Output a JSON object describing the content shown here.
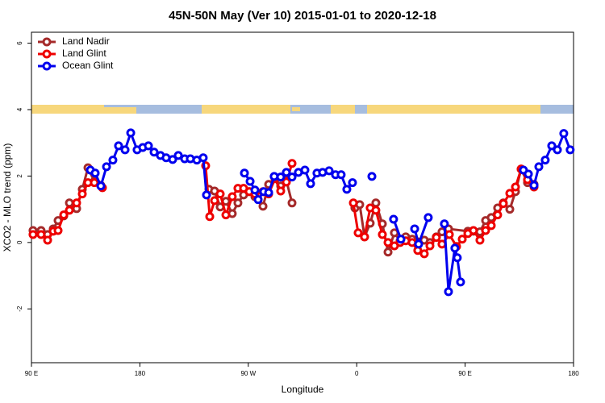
{
  "chart_data": {
    "type": "line",
    "title": "45N-50N May (Ver 10)   2015-01-01 to 2020-12-18",
    "x_label": "Longitude",
    "y_label": "XCO2 - MLO trend (ppm)",
    "xlim": [
      90,
      540
    ],
    "xticks": [
      {
        "value": 90,
        "label": "90 E"
      },
      180,
      {
        "value": 270,
        "label": "90 W"
      },
      {
        "value": 360,
        "label": "0"
      },
      {
        "value": 450,
        "label": "90 E"
      },
      {
        "value": 540,
        "label": "180"
      }
    ],
    "ylim": [
      -3.62,
      6.33
    ],
    "yticks": [
      -2,
      0,
      2,
      4,
      6
    ],
    "legend": "top-left",
    "series": [
      {
        "name": "Land Nadir",
        "color": "#a52a2a",
        "x": [
          91.3,
          98,
          103.4,
          108.1,
          112.1,
          116.8,
          121.5,
          127.5,
          132.2,
          136.9,
          142.2,
          147.6,
          null,
          237.3,
          242,
          246.7,
          251.4,
          256.7,
          261.4,
          266.1,
          270.8,
          275.5,
          282.2,
          286.9,
          292.2,
          296.9,
          301.6,
          306.3,
          null,
          358.5,
          362.5,
          366.5,
          371.2,
          375.9,
          381.3,
          386,
          391.3,
          396,
          400.7,
          406,
          410.7,
          416.1,
          420.8,
          426.1,
          430.8,
          436.2,
          452.3,
          456.9,
          462.3,
          467,
          471.7,
          477,
          481.7,
          487.1,
          491.8,
          496.5,
          501.8,
          507.2
        ],
        "values": [
          0.36,
          0.36,
          0.24,
          0.41,
          0.66,
          0.8,
          1.19,
          1.02,
          1.6,
          2.25,
          1.84,
          1.72,
          null,
          1.6,
          1.55,
          1.07,
          1.24,
          0.87,
          1.19,
          1.43,
          1.53,
          1.38,
          1.09,
          1.75,
          1.94,
          1.7,
          1.87,
          1.19,
          null,
          1.04,
          1.14,
          0.17,
          0.58,
          1.19,
          0.56,
          -0.29,
          0.29,
          0.05,
          0.17,
          0.1,
          0.02,
          0.07,
          0,
          0.17,
          0.32,
          0.41,
          0.34,
          0.34,
          0.32,
          0.66,
          0.75,
          1.04,
          1.19,
          1.0,
          1.53,
          2.21,
          1.8,
          1.75
        ]
      },
      {
        "name": "Land Glint",
        "color": "#ee0000",
        "x": [
          91.3,
          98,
          103.4,
          108.1,
          112.1,
          116.8,
          121.5,
          127.5,
          132.2,
          136.9,
          142.2,
          148.9,
          null,
          234.6,
          238,
          242,
          246.7,
          251.4,
          256.7,
          261.4,
          266.1,
          270.8,
          275.5,
          282.2,
          286.9,
          292.2,
          296.9,
          301.6,
          306.3,
          null,
          357.2,
          361.2,
          366.5,
          371.2,
          375.9,
          381.3,
          386,
          391.3,
          396,
          400.7,
          406,
          410.7,
          416.1,
          420.8,
          426.1,
          430.8,
          436.9,
          442.9,
          447.6,
          452.3,
          456.9,
          462.3,
          467,
          471.7,
          477,
          481.7,
          487.1,
          491.8,
          496.5,
          501.8,
          507.2
        ],
        "values": [
          0.24,
          0.24,
          0.07,
          0.34,
          0.36,
          0.83,
          0.97,
          1.19,
          1.46,
          1.8,
          1.8,
          1.65,
          null,
          2.31,
          0.78,
          1.26,
          1.46,
          0.83,
          1.38,
          1.63,
          1.63,
          1.53,
          1.46,
          1.53,
          1.46,
          1.92,
          1.55,
          1.82,
          2.38,
          null,
          1.19,
          0.29,
          0.17,
          1.04,
          0.97,
          0.24,
          0,
          -0.1,
          0,
          0.05,
          0,
          -0.24,
          -0.34,
          -0.1,
          0.15,
          -0.05,
          0.24,
          -0.12,
          0.1,
          0.27,
          0.36,
          0.07,
          0.36,
          0.51,
          0.83,
          1.17,
          1.48,
          1.67,
          2.21,
          1.89,
          1.67
        ]
      },
      {
        "name": "Ocean Glint",
        "color": "#0000ee",
        "x": [
          138.9,
          142.9,
          147.6,
          152.3,
          157.6,
          162.3,
          167.7,
          172.4,
          177.7,
          182.4,
          187.1,
          191.8,
          197.1,
          201.8,
          207.2,
          211.9,
          217.2,
          221.9,
          227.3,
          232.6,
          235.3,
          null,
          266.8,
          271.5,
          275.5,
          278.2,
          282.8,
          286.9,
          291.5,
          296.9,
          301.6,
          306.3,
          311.6,
          317,
          321.7,
          327,
          331.7,
          337.1,
          342.4,
          347.1,
          351.8,
          356.5,
          null,
          372.6,
          null,
          390.6,
          396.7,
          null,
          408.1,
          411.4,
          419.4,
          null,
          432.8,
          436.2,
          441.5,
          443.5,
          446.2,
          null,
          498.4,
          502.5,
          507.2,
          511.2,
          516.5,
          521.9,
          526.6,
          531.9,
          537.2
        ],
        "values": [
          2.18,
          2.09,
          1.7,
          2.28,
          2.48,
          2.91,
          2.79,
          3.3,
          2.79,
          2.86,
          2.91,
          2.72,
          2.62,
          2.55,
          2.5,
          2.62,
          2.52,
          2.52,
          2.48,
          2.55,
          1.43,
          null,
          2.09,
          1.84,
          1.58,
          1.29,
          1.53,
          1.5,
          1.99,
          1.97,
          2.11,
          1.97,
          2.11,
          2.18,
          1.77,
          2.09,
          2.11,
          2.16,
          2.04,
          2.04,
          1.6,
          1.8,
          null,
          1.99,
          null,
          0.7,
          0.1,
          null,
          0.41,
          -0.05,
          0.75,
          null,
          0.56,
          -1.48,
          -0.17,
          -0.46,
          -1.19,
          null,
          2.18,
          2.06,
          1.72,
          2.28,
          2.48,
          2.91,
          2.79,
          3.28,
          2.79
        ]
      }
    ]
  }
}
